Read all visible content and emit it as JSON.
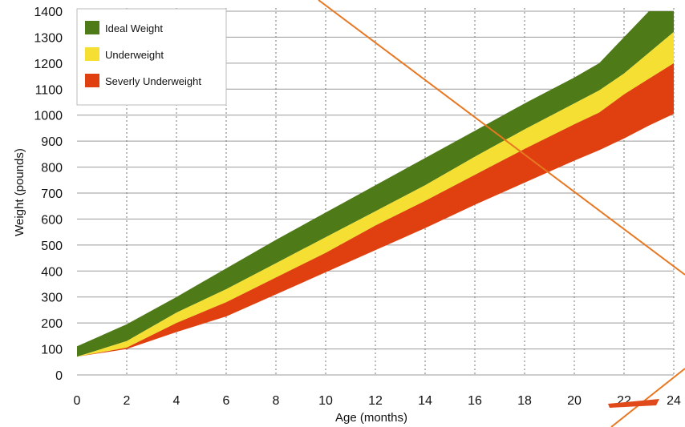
{
  "chart_data": {
    "type": "area",
    "title": "",
    "xlabel": "Age (months)",
    "ylabel": "Weight (pounds)",
    "xlim": [
      0,
      24
    ],
    "ylim": [
      0,
      1400
    ],
    "xticks": [
      0,
      2,
      4,
      6,
      8,
      10,
      12,
      14,
      16,
      18,
      20,
      22,
      24
    ],
    "yticks": [
      0,
      100,
      200,
      300,
      400,
      500,
      600,
      700,
      800,
      900,
      1000,
      1100,
      1200,
      1300,
      1400
    ],
    "grid": {
      "vertical": "dotted",
      "horizontal": "solid"
    },
    "legend_position": "top-left",
    "series": [
      {
        "name": "Ideal Weight",
        "color": "#4e7a17",
        "x": [
          0,
          2,
          4,
          6,
          8,
          10,
          12,
          14,
          16,
          18,
          20,
          21,
          22,
          23,
          24
        ],
        "upper": [
          110,
          195,
          300,
          410,
          520,
          625,
          730,
          835,
          940,
          1045,
          1145,
          1200,
          1300,
          1400,
          1400
        ],
        "lower": [
          70,
          130,
          240,
          330,
          430,
          530,
          630,
          730,
          840,
          945,
          1045,
          1095,
          1160,
          1240,
          1320
        ]
      },
      {
        "name": "Underweight",
        "color": "#f5df33",
        "x": [
          0,
          2,
          4,
          6,
          8,
          10,
          12,
          14,
          16,
          18,
          20,
          21,
          22,
          23,
          24
        ],
        "upper": [
          70,
          130,
          240,
          330,
          430,
          530,
          630,
          730,
          840,
          945,
          1045,
          1095,
          1160,
          1240,
          1320
        ],
        "lower": [
          70,
          105,
          200,
          280,
          375,
          470,
          575,
          670,
          770,
          870,
          965,
          1010,
          1080,
          1140,
          1200
        ]
      },
      {
        "name": "Severly Underweight",
        "color": "#e04010",
        "x": [
          0,
          2,
          4,
          6,
          8,
          10,
          12,
          14,
          16,
          18,
          20,
          21,
          22,
          23,
          24
        ],
        "upper": [
          70,
          105,
          200,
          280,
          375,
          470,
          575,
          670,
          770,
          870,
          965,
          1010,
          1080,
          1140,
          1200
        ],
        "lower": [
          70,
          100,
          165,
          225,
          310,
          395,
          480,
          565,
          655,
          740,
          825,
          865,
          910,
          960,
          1005
        ]
      }
    ]
  },
  "colors": {
    "ideal": "#4e7a17",
    "underweight": "#f5df33",
    "severe": "#e04010",
    "grid": "#888888",
    "annotation": "#e87722"
  }
}
